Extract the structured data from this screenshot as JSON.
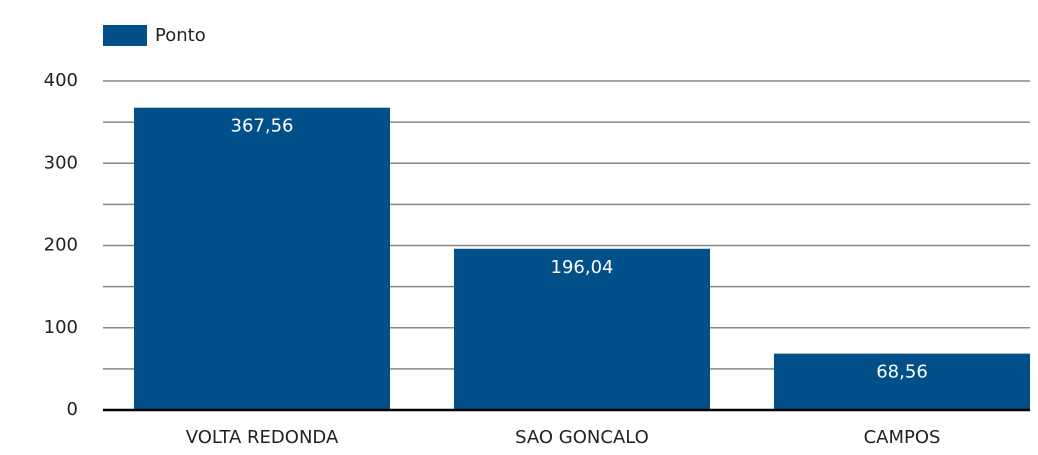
{
  "chart_data": {
    "type": "bar",
    "legend": "Ponto",
    "categories": [
      "VOLTA REDONDA",
      "SAO GONCALO",
      "CAMPOS"
    ],
    "values": [
      367.56,
      196.04,
      68.56
    ],
    "value_labels": [
      "367,56",
      "196,04",
      "68,56"
    ],
    "color": "#02508a",
    "ylim": [
      0,
      400
    ],
    "yticks": [
      0,
      100,
      200,
      300,
      400
    ],
    "minor_yticks": [
      50,
      150,
      250,
      350
    ],
    "grid": true
  }
}
